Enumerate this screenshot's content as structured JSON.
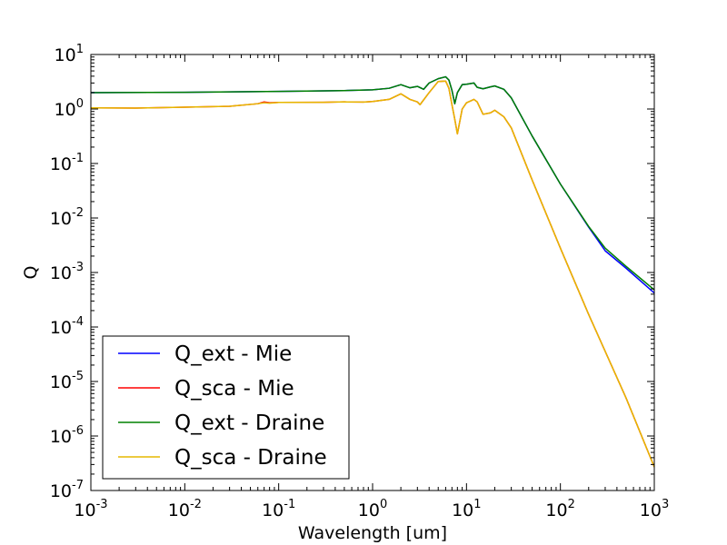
{
  "chart_data": {
    "type": "line",
    "title": "",
    "xlabel": "Wavelength [um]",
    "ylabel": "Q",
    "xscale": "log",
    "yscale": "log",
    "xlim": [
      0.001,
      1000
    ],
    "ylim": [
      1e-07,
      10
    ],
    "grid": false,
    "legend_position": "lower-left",
    "x_ticks": [
      "10^-3",
      "10^-2",
      "10^-1",
      "10^0",
      "10^1",
      "10^2",
      "10^3"
    ],
    "y_ticks": [
      "10^-7",
      "10^-6",
      "10^-5",
      "10^-4",
      "10^-3",
      "10^-2",
      "10^-1",
      "10^0",
      "10^1"
    ],
    "series": [
      {
        "name": "Q_ext - Mie",
        "color": "#0000ff",
        "x": [
          0.001,
          0.01,
          0.1,
          0.5,
          1,
          1.5,
          2,
          2.5,
          3,
          3.5,
          4,
          5,
          6,
          6.5,
          7,
          7.5,
          8,
          9,
          10,
          12,
          13,
          15,
          18,
          20,
          25,
          30,
          50,
          100,
          200,
          300,
          500,
          1000
        ],
        "y": [
          2.0,
          2.02,
          2.1,
          2.18,
          2.25,
          2.4,
          2.8,
          2.45,
          2.6,
          2.3,
          3.0,
          3.6,
          3.9,
          3.4,
          2.2,
          1.25,
          2.0,
          2.8,
          2.85,
          3.0,
          2.5,
          2.35,
          2.55,
          2.65,
          2.3,
          1.6,
          0.32,
          0.042,
          0.0068,
          0.0025,
          0.0012,
          0.00042
        ]
      },
      {
        "name": "Q_sca - Mie",
        "color": "#ff0000",
        "x": [
          0.001,
          0.003,
          0.01,
          0.03,
          0.06,
          0.07,
          0.08,
          0.1,
          0.3,
          0.5,
          0.8,
          1,
          1.5,
          2,
          2.5,
          3,
          3.2,
          4,
          5,
          6,
          6.5,
          7,
          7.5,
          8,
          9,
          10,
          12,
          13,
          15,
          18,
          20,
          25,
          30,
          50,
          100,
          200,
          500,
          1000
        ],
        "y": [
          1.05,
          1.04,
          1.08,
          1.12,
          1.25,
          1.35,
          1.3,
          1.32,
          1.33,
          1.35,
          1.34,
          1.37,
          1.5,
          1.9,
          1.5,
          1.35,
          1.2,
          2.0,
          3.2,
          3.25,
          2.4,
          1.2,
          0.65,
          0.35,
          1.0,
          1.3,
          1.5,
          1.35,
          0.8,
          0.85,
          0.95,
          0.72,
          0.45,
          0.05,
          0.0028,
          0.00017,
          5e-06,
          2.7e-07
        ]
      },
      {
        "name": "Q_ext - Draine",
        "color": "#008000",
        "x": [
          0.001,
          0.01,
          0.1,
          0.5,
          1,
          1.5,
          2,
          2.5,
          3,
          3.5,
          4,
          5,
          6,
          6.5,
          7,
          7.5,
          8,
          9,
          10,
          12,
          13,
          15,
          18,
          20,
          25,
          30,
          50,
          100,
          200,
          300,
          500,
          1000
        ],
        "y": [
          2.0,
          2.02,
          2.1,
          2.18,
          2.25,
          2.4,
          2.8,
          2.45,
          2.6,
          2.3,
          3.0,
          3.6,
          3.9,
          3.4,
          2.2,
          1.25,
          2.0,
          2.8,
          2.85,
          3.0,
          2.5,
          2.35,
          2.55,
          2.65,
          2.3,
          1.6,
          0.32,
          0.042,
          0.007,
          0.0028,
          0.0013,
          0.00048
        ]
      },
      {
        "name": "Q_sca - Draine",
        "color": "#e6b800",
        "x": [
          0.001,
          0.003,
          0.01,
          0.03,
          0.06,
          0.07,
          0.08,
          0.1,
          0.3,
          0.5,
          0.8,
          1,
          1.5,
          2,
          2.5,
          3,
          3.2,
          4,
          5,
          6,
          6.5,
          7,
          7.5,
          8,
          9,
          10,
          12,
          13,
          15,
          18,
          20,
          25,
          30,
          50,
          100,
          200,
          500,
          1000
        ],
        "y": [
          1.05,
          1.04,
          1.08,
          1.12,
          1.25,
          1.3,
          1.28,
          1.32,
          1.33,
          1.35,
          1.34,
          1.37,
          1.5,
          1.9,
          1.5,
          1.35,
          1.2,
          2.0,
          3.2,
          3.25,
          2.4,
          1.2,
          0.65,
          0.35,
          1.0,
          1.3,
          1.5,
          1.35,
          0.8,
          0.85,
          0.95,
          0.72,
          0.45,
          0.05,
          0.0028,
          0.00017,
          5e-06,
          2.7e-07
        ]
      }
    ]
  }
}
